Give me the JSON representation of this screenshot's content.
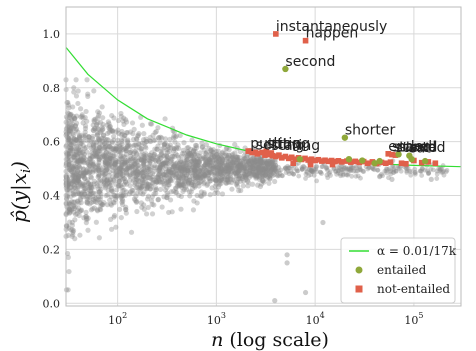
{
  "chart_data": {
    "type": "scatter",
    "xlabel": "n (log scale)",
    "ylabel": "p̂(y|x_i)",
    "x_scale": "log",
    "xlim": [
      30,
      300000
    ],
    "ylim": [
      -0.01,
      1.1
    ],
    "x_ticks": [
      {
        "value": 100,
        "base": "10",
        "exp": "2"
      },
      {
        "value": 1000,
        "base": "10",
        "exp": "3"
      },
      {
        "value": 10000,
        "base": "10",
        "exp": "4"
      },
      {
        "value": 100000,
        "base": "10",
        "exp": "5"
      }
    ],
    "y_ticks": [
      {
        "value": 0.0,
        "label": "0.0"
      },
      {
        "value": 0.2,
        "label": "0.2"
      },
      {
        "value": 0.4,
        "label": "0.4"
      },
      {
        "value": 0.6,
        "label": "0.6"
      },
      {
        "value": 0.8,
        "label": "0.8"
      },
      {
        "value": 1.0,
        "label": "1.0"
      }
    ],
    "grid": true,
    "legend_position": "bottom-right",
    "legend": {
      "line_label": "α = 0.01/17k",
      "entailed_label": "entailed",
      "not_entailed_label": "not-entailed"
    },
    "colors": {
      "background_points": "#8c8c8c",
      "threshold_line": "#33dd33",
      "entailed": "#8fa83a",
      "not_entailed": "#e0604a",
      "grid": "#d9d9d9",
      "frame": "#bbbbbb"
    },
    "threshold_curve": [
      {
        "x": 30,
        "y": 0.95
      },
      {
        "x": 50,
        "y": 0.85
      },
      {
        "x": 100,
        "y": 0.755
      },
      {
        "x": 200,
        "y": 0.685
      },
      {
        "x": 500,
        "y": 0.625
      },
      {
        "x": 1000,
        "y": 0.592
      },
      {
        "x": 2000,
        "y": 0.567
      },
      {
        "x": 5000,
        "y": 0.545
      },
      {
        "x": 10000,
        "y": 0.532
      },
      {
        "x": 30000,
        "y": 0.52
      },
      {
        "x": 100000,
        "y": 0.512
      },
      {
        "x": 300000,
        "y": 0.507
      }
    ],
    "labeled_points": [
      {
        "word": "instantaneously",
        "x": 4000,
        "y": 1.0,
        "class": "not-entailed"
      },
      {
        "word": "happen",
        "x": 8000,
        "y": 0.975,
        "class": "not-entailed"
      },
      {
        "word": "second",
        "x": 5000,
        "y": 0.87,
        "class": "entailed"
      },
      {
        "word": "shorter",
        "x": 20000,
        "y": 0.615,
        "class": "entailed"
      },
      {
        "word": "putting",
        "x": 2200,
        "y": 0.565,
        "class": "not-entailed"
      },
      {
        "word": "setting",
        "x": 2500,
        "y": 0.56,
        "class": "not-entailed"
      },
      {
        "word": "sitting",
        "x": 3200,
        "y": 0.565,
        "class": "not-entailed"
      },
      {
        "word": "staring",
        "x": 3600,
        "y": 0.558,
        "class": "not-entailed"
      },
      {
        "word": "ended",
        "x": 55000,
        "y": 0.555,
        "class": "not-entailed"
      },
      {
        "word": "stared",
        "x": 60000,
        "y": 0.552,
        "class": "not-entailed"
      },
      {
        "word": "started",
        "x": 65000,
        "y": 0.55,
        "class": "not-entailed"
      },
      {
        "word": "stood",
        "x": 70000,
        "y": 0.553,
        "class": "entailed"
      },
      {
        "word": "sat",
        "x": 90000,
        "y": 0.548,
        "class": "entailed"
      }
    ],
    "not_entailed_points": [
      {
        "x": 2100,
        "y": 0.565
      },
      {
        "x": 2300,
        "y": 0.56
      },
      {
        "x": 2600,
        "y": 0.555
      },
      {
        "x": 2900,
        "y": 0.56
      },
      {
        "x": 3100,
        "y": 0.55
      },
      {
        "x": 3400,
        "y": 0.552
      },
      {
        "x": 3700,
        "y": 0.548
      },
      {
        "x": 4000,
        "y": 0.545
      },
      {
        "x": 4300,
        "y": 0.55
      },
      {
        "x": 4600,
        "y": 0.54
      },
      {
        "x": 5000,
        "y": 0.545
      },
      {
        "x": 5400,
        "y": 0.538
      },
      {
        "x": 5800,
        "y": 0.542
      },
      {
        "x": 6300,
        "y": 0.535
      },
      {
        "x": 6800,
        "y": 0.54
      },
      {
        "x": 7300,
        "y": 0.534
      },
      {
        "x": 7900,
        "y": 0.538
      },
      {
        "x": 8500,
        "y": 0.532
      },
      {
        "x": 9200,
        "y": 0.535
      },
      {
        "x": 10000,
        "y": 0.53
      },
      {
        "x": 10800,
        "y": 0.533
      },
      {
        "x": 11700,
        "y": 0.528
      },
      {
        "x": 12600,
        "y": 0.531
      },
      {
        "x": 13600,
        "y": 0.527
      },
      {
        "x": 14700,
        "y": 0.53
      },
      {
        "x": 15900,
        "y": 0.526
      },
      {
        "x": 17200,
        "y": 0.529
      },
      {
        "x": 18600,
        "y": 0.525
      },
      {
        "x": 21000,
        "y": 0.528
      },
      {
        "x": 23000,
        "y": 0.524
      },
      {
        "x": 25500,
        "y": 0.527
      },
      {
        "x": 28000,
        "y": 0.523
      },
      {
        "x": 31000,
        "y": 0.526
      },
      {
        "x": 34000,
        "y": 0.52
      },
      {
        "x": 38000,
        "y": 0.525
      },
      {
        "x": 42000,
        "y": 0.519
      },
      {
        "x": 47000,
        "y": 0.523
      },
      {
        "x": 52000,
        "y": 0.52
      },
      {
        "x": 58000,
        "y": 0.524
      },
      {
        "x": 75000,
        "y": 0.52
      },
      {
        "x": 83000,
        "y": 0.518
      },
      {
        "x": 100000,
        "y": 0.53
      },
      {
        "x": 120000,
        "y": 0.522
      },
      {
        "x": 140000,
        "y": 0.525
      },
      {
        "x": 165000,
        "y": 0.52
      },
      {
        "x": 6000,
        "y": 0.52
      },
      {
        "x": 9000,
        "y": 0.515
      },
      {
        "x": 15000,
        "y": 0.515
      }
    ],
    "entailed_points": [
      {
        "x": 22000,
        "y": 0.535
      },
      {
        "x": 30000,
        "y": 0.53
      },
      {
        "x": 45000,
        "y": 0.528
      },
      {
        "x": 95000,
        "y": 0.535
      },
      {
        "x": 130000,
        "y": 0.528
      },
      {
        "x": 40000,
        "y": 0.52
      },
      {
        "x": 7000,
        "y": 0.535
      }
    ],
    "background_stats": {
      "count": 2200,
      "center_y": 0.5,
      "spread_at_x30": 0.33,
      "spread_at_x3000": 0.06,
      "outliers": [
        {
          "x": 5200,
          "y": 0.18
        },
        {
          "x": 5200,
          "y": 0.15
        },
        {
          "x": 3900,
          "y": 0.01
        },
        {
          "x": 8000,
          "y": 0.04
        },
        {
          "x": 12000,
          "y": 0.3
        },
        {
          "x": 60000,
          "y": 0.46
        },
        {
          "x": 45000,
          "y": 0.47
        },
        {
          "x": 150000,
          "y": 0.46
        }
      ]
    }
  }
}
